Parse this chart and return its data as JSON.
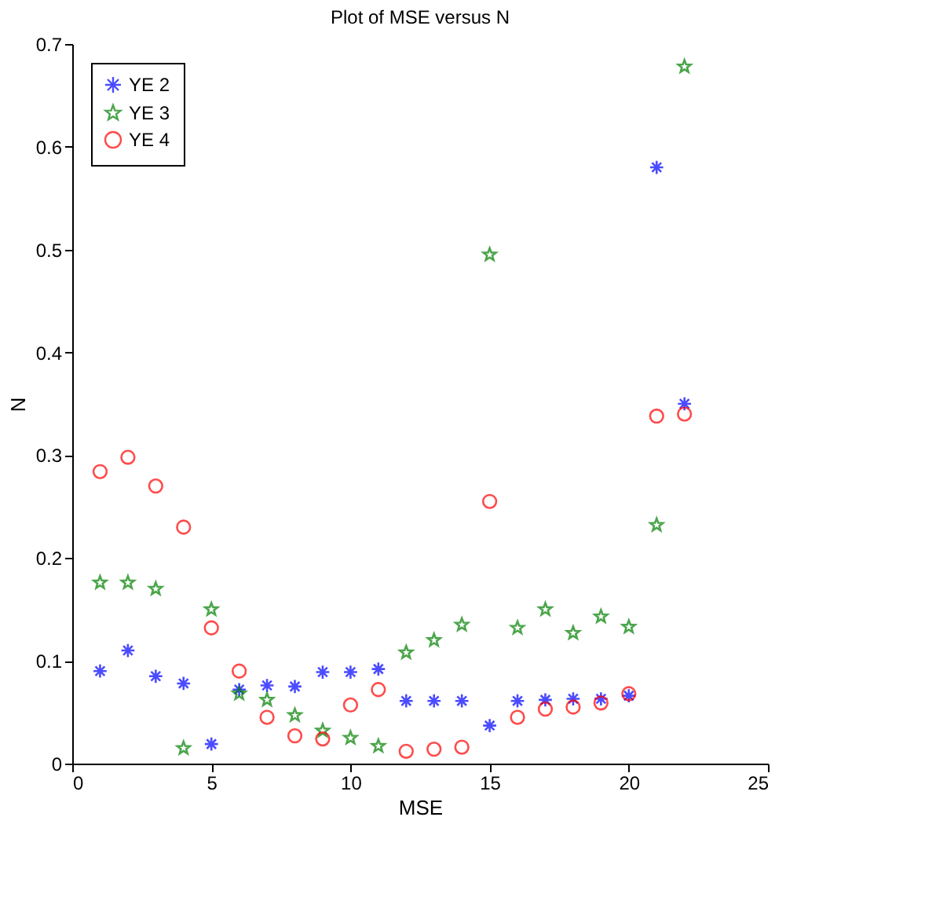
{
  "chart_data": {
    "type": "scatter",
    "title": "Plot of MSE versus N",
    "xlabel": "MSE",
    "ylabel": "N",
    "x": [
      1,
      2,
      3,
      4,
      5,
      6,
      7,
      8,
      9,
      10,
      11,
      12,
      13,
      14,
      15,
      16,
      17,
      18,
      19,
      20,
      21,
      22
    ],
    "series": [
      {
        "name": "YE 2",
        "color": "#0000ff",
        "marker": "cross",
        "values": [
          0.09,
          0.11,
          0.085,
          0.078,
          0.019,
          0.072,
          0.076,
          0.075,
          0.089,
          0.089,
          0.092,
          0.061,
          0.061,
          0.061,
          0.037,
          0.061,
          0.062,
          0.063,
          0.063,
          0.066,
          0.58,
          0.35
        ]
      },
      {
        "name": "YE 3",
        "color": "#008000",
        "marker": "star",
        "values": [
          0.176,
          0.176,
          0.17,
          0.015,
          0.15,
          0.068,
          0.062,
          0.047,
          0.032,
          0.025,
          0.017,
          0.108,
          0.12,
          0.135,
          0.495,
          0.132,
          0.15,
          0.127,
          0.143,
          0.133,
          0.232,
          0.678
        ]
      },
      {
        "name": "YE 4",
        "color": "#ff0000",
        "marker": "circle",
        "values": [
          0.284,
          0.298,
          0.27,
          0.23,
          0.132,
          0.09,
          0.045,
          0.027,
          0.024,
          0.057,
          0.072,
          0.012,
          0.014,
          0.016,
          0.255,
          0.045,
          0.053,
          0.055,
          0.059,
          0.068,
          0.338,
          0.34
        ]
      }
    ],
    "xlim": [
      0,
      25
    ],
    "xticks": [
      0,
      5,
      10,
      15,
      20,
      25
    ],
    "ylim": [
      0,
      0.7
    ],
    "yticks": [
      0,
      0.1,
      0.2,
      0.3,
      0.4,
      0.5,
      0.6,
      0.7
    ],
    "grid": false,
    "legend": "top left"
  }
}
